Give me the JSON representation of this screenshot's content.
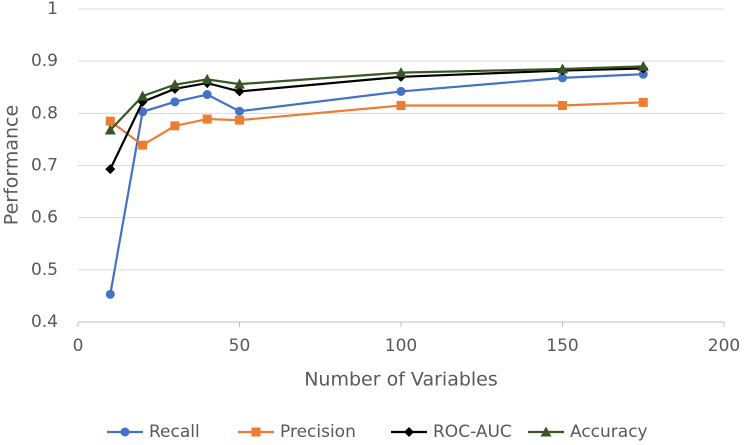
{
  "chart_data": {
    "type": "line",
    "x_label": "Number of Variables",
    "y_label": "Performance",
    "x": [
      10,
      20,
      30,
      40,
      50,
      100,
      150,
      175
    ],
    "series": [
      {
        "name": "Recall",
        "color": "#4472c4",
        "marker": "circle",
        "values": [
          0.453,
          0.803,
          0.822,
          0.836,
          0.804,
          0.842,
          0.868,
          0.875
        ]
      },
      {
        "name": "Precision",
        "color": "#ed7d31",
        "marker": "square",
        "values": [
          0.785,
          0.739,
          0.776,
          0.789,
          0.787,
          0.815,
          0.815,
          0.821
        ]
      },
      {
        "name": "ROC-AUC",
        "color": "#000000",
        "marker": "diamond",
        "values": [
          0.693,
          0.822,
          0.847,
          0.858,
          0.842,
          0.87,
          0.882,
          0.886
        ]
      },
      {
        "name": "Accuracy",
        "color": "#375623",
        "marker": "triangle",
        "values": [
          0.768,
          0.833,
          0.855,
          0.865,
          0.856,
          0.878,
          0.885,
          0.89
        ]
      }
    ],
    "xlim": [
      0,
      200
    ],
    "xticks": [
      0,
      50,
      100,
      150,
      200
    ],
    "ylim": [
      0.4,
      1
    ],
    "yticks": [
      0.4,
      0.5,
      0.6,
      0.7,
      0.8,
      0.9,
      1
    ],
    "grid": true,
    "legend": "bottom"
  }
}
